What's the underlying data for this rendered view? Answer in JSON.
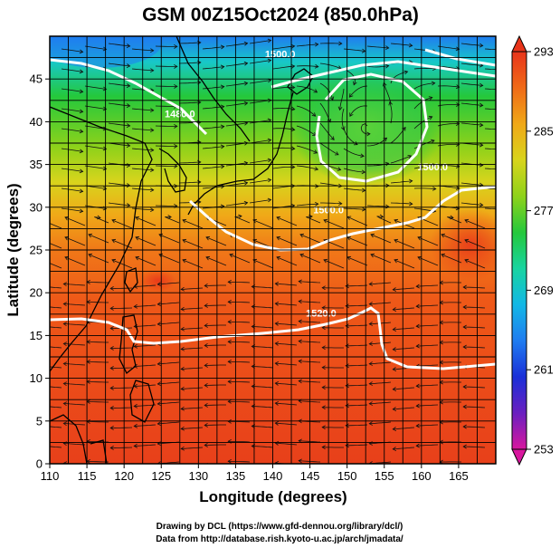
{
  "chart_data": {
    "type": "heatmap",
    "title": "GSM 00Z15Oct2024 (850.0hPa)",
    "xlabel": "Longitude (degrees)",
    "ylabel": "Latitude  (degrees)",
    "xlim": [
      110,
      170
    ],
    "ylim": [
      0,
      50
    ],
    "x_ticks": [
      "110",
      "115",
      "120",
      "125",
      "130",
      "135",
      "140",
      "145",
      "150",
      "155",
      "160",
      "165"
    ],
    "y_ticks": [
      "0",
      "5",
      "10",
      "15",
      "20",
      "25",
      "30",
      "35",
      "40",
      "45"
    ],
    "grid": true,
    "colorbar": {
      "min": 253,
      "max": 293,
      "ticks": [
        "253",
        "261",
        "269",
        "277",
        "285",
        "293"
      ],
      "colors": [
        "#d8179e",
        "#6a1fc0",
        "#1a2fd8",
        "#1f7cf0",
        "#12b8e6",
        "#18d4a0",
        "#24c83c",
        "#8ed21a",
        "#d8d41c",
        "#f0a818",
        "#f06a18",
        "#e8341a"
      ]
    },
    "contour_labels": [
      {
        "text": "1520.0",
        "lon": 146.5,
        "lat": 17.2
      },
      {
        "text": "1500.0",
        "lon": 161.5,
        "lat": 34.3
      },
      {
        "text": "1500.0",
        "lon": 147.5,
        "lat": 29.3
      },
      {
        "text": "1500.0",
        "lon": 141.0,
        "lat": 47.5
      },
      {
        "text": "1480.0",
        "lon": 127.5,
        "lat": 40.5
      }
    ],
    "credits": {
      "line1": "Drawing by DCL (https://www.gfd-dennou.org/library/dcl/)",
      "line2": "Data from http://database.rish.kyoto-u.ac.jp/arch/jmadata/"
    }
  }
}
